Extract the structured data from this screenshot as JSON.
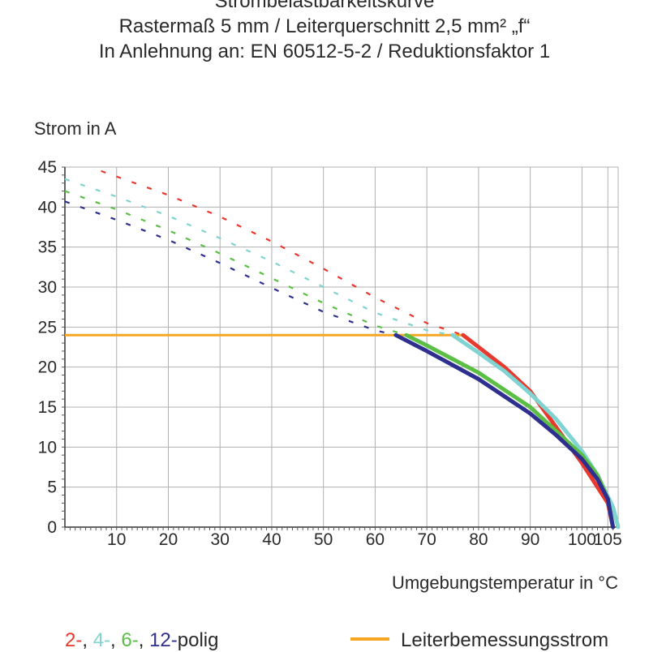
{
  "title_lines": [
    "Strombelastbarkeitskurve",
    "Rastermaß 5 mm / Leiterquerschnitt 2,5 mm² „f“",
    "In Anlehnung an: EN 60512-5-2 / Reduktionsfaktor 1"
  ],
  "legend": {
    "pole_parts": [
      "2-",
      ", ",
      "4-",
      ", ",
      "6-",
      ", ",
      "12-",
      "polig"
    ],
    "rated_current_label": "Leiterbemessungsstrom"
  },
  "colors": {
    "2-polig": "#e8392f",
    "4-polig": "#7fd3d0",
    "6-polig": "#5bbf45",
    "12-polig": "#2e2f8f",
    "rated": "#f5a623",
    "grid": "#b0b0b0"
  },
  "chart_data": {
    "type": "line",
    "title": "Strombelastbarkeitskurve",
    "xlabel": "Umgebungstemperatur in °C",
    "ylabel": "Strom in A",
    "xlim": [
      0,
      107
    ],
    "ylim": [
      0,
      45
    ],
    "x_ticks": [
      10,
      20,
      30,
      40,
      50,
      60,
      70,
      80,
      90,
      100,
      105
    ],
    "y_ticks": [
      0,
      5,
      10,
      15,
      20,
      25,
      30,
      35,
      40,
      45
    ],
    "grid": true,
    "series": [
      {
        "name": "2-polig",
        "dashed": {
          "x": [
            7,
            20,
            30,
            40,
            50,
            60,
            70,
            77
          ],
          "y": [
            44.5,
            41.5,
            38.8,
            35.7,
            32.3,
            28.7,
            25.5,
            24
          ]
        },
        "solid": {
          "x": [
            77,
            85,
            90,
            95,
            100,
            103,
            105,
            106
          ],
          "y": [
            24,
            20,
            17,
            12.5,
            8,
            5,
            3,
            0
          ]
        }
      },
      {
        "name": "4-polig",
        "dashed": {
          "x": [
            0,
            10,
            20,
            30,
            40,
            50,
            60,
            70,
            75
          ],
          "y": [
            43.5,
            41.3,
            38.9,
            36.1,
            33.2,
            30,
            26.8,
            24.6,
            24
          ]
        },
        "solid": {
          "x": [
            75,
            80,
            85,
            90,
            95,
            100,
            103,
            106,
            107
          ],
          "y": [
            24,
            21.8,
            19.5,
            16.7,
            13.5,
            9.5,
            6.5,
            2.5,
            0
          ]
        }
      },
      {
        "name": "6-polig",
        "dashed": {
          "x": [
            0,
            10,
            20,
            30,
            40,
            50,
            60,
            66
          ],
          "y": [
            42,
            39.7,
            37.1,
            34.2,
            31.1,
            28,
            25.2,
            24
          ]
        },
        "solid": {
          "x": [
            66,
            70,
            80,
            90,
            95,
            100,
            103,
            105,
            106
          ],
          "y": [
            24,
            22.7,
            19.3,
            15,
            12,
            9,
            6.5,
            3.5,
            0
          ]
        }
      },
      {
        "name": "12-polig",
        "dashed": {
          "x": [
            0,
            10,
            20,
            30,
            40,
            50,
            60,
            64
          ],
          "y": [
            40.7,
            38.4,
            35.9,
            33,
            29.9,
            26.9,
            24.6,
            24
          ]
        },
        "solid": {
          "x": [
            64,
            70,
            80,
            90,
            95,
            100,
            103,
            105,
            106
          ],
          "y": [
            24,
            22,
            18.5,
            14.2,
            11.5,
            8.5,
            6,
            3.5,
            0
          ]
        }
      }
    ],
    "rated_current": {
      "name": "Leiterbemessungsstrom",
      "value": 24,
      "x_range": [
        0,
        77
      ]
    }
  }
}
